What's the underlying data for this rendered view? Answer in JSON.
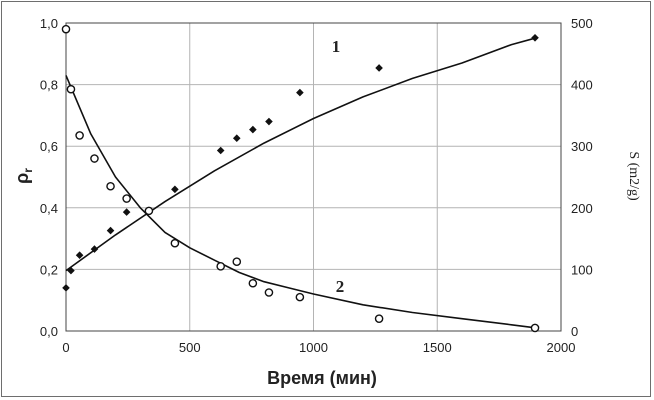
{
  "chart_data": {
    "type": "scatter",
    "xlabel": "Время (мин)",
    "ylabel": "ρr",
    "ylabel_main": "ρ",
    "ylabel_sub": "r",
    "y2label": "S (m2/g)",
    "xlim": [
      0,
      2000
    ],
    "ylim": [
      0,
      1.0
    ],
    "y2lim": [
      0,
      500
    ],
    "grid": true,
    "x_ticks": [
      "0",
      "500",
      "1000",
      "1500",
      "2000"
    ],
    "y_ticks": [
      "0,0",
      "0,2",
      "0,4",
      "0,6",
      "0,8",
      "1,0"
    ],
    "y2_ticks": [
      "0",
      "100",
      "200",
      "300",
      "400",
      "500"
    ],
    "series": [
      {
        "name": "1",
        "axis": "right",
        "marker": "diamond",
        "x": [
          0,
          20,
          55,
          115,
          180,
          245,
          440,
          625,
          690,
          755,
          820,
          945,
          1265,
          1895
        ],
        "y": [
          70,
          98,
          123,
          133,
          163,
          193,
          230,
          293,
          313,
          327,
          340,
          387,
          427,
          476
        ],
        "fit_x": [
          0,
          200,
          400,
          600,
          800,
          1000,
          1200,
          1400,
          1600,
          1800,
          1900
        ],
        "fit_y": [
          98,
          156,
          210,
          260,
          305,
          345,
          380,
          410,
          435,
          465,
          476
        ]
      },
      {
        "name": "2",
        "axis": "left",
        "marker": "circle",
        "x": [
          0,
          20,
          55,
          115,
          180,
          245,
          335,
          440,
          625,
          690,
          755,
          820,
          945,
          1265,
          1895
        ],
        "y": [
          0.98,
          0.785,
          0.635,
          0.56,
          0.47,
          0.43,
          0.39,
          0.285,
          0.21,
          0.225,
          0.155,
          0.125,
          0.11,
          0.04,
          0.01
        ],
        "fit_x": [
          0,
          100,
          200,
          300,
          400,
          500,
          600,
          700,
          800,
          900,
          1000,
          1200,
          1400,
          1600,
          1800,
          1900
        ],
        "fit_y": [
          0.83,
          0.64,
          0.5,
          0.4,
          0.32,
          0.27,
          0.23,
          0.19,
          0.16,
          0.14,
          0.12,
          0.085,
          0.06,
          0.04,
          0.02,
          0.01
        ]
      }
    ]
  }
}
